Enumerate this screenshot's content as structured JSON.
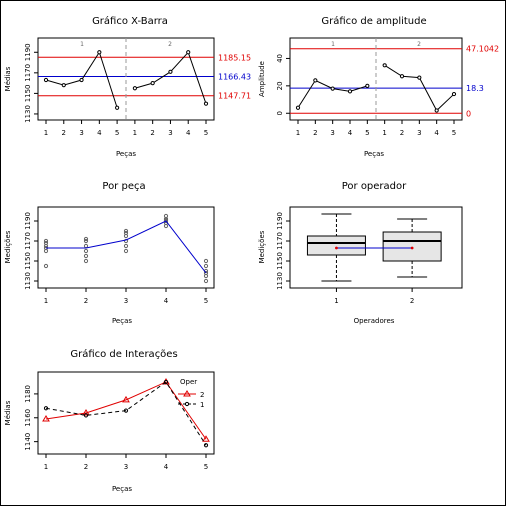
{
  "chart_data": [
    {
      "type": "line",
      "title": "Gráfico X-Barra",
      "xlabel": "Peças",
      "ylabel": "Médias",
      "categories": [
        "1",
        "2",
        "3",
        "4",
        "5",
        "1",
        "2",
        "3",
        "4",
        "5"
      ],
      "operator_labels": [
        "1",
        "2"
      ],
      "series": [
        {
          "values": [
            1163,
            1158,
            1163,
            1190,
            1136,
            1155,
            1160,
            1171,
            1190,
            1140
          ]
        }
      ],
      "center_line": 1166.43,
      "ucl": 1185.15,
      "lcl": 1147.71,
      "limit_labels": [
        "1185.15",
        "1166.43",
        "1147.71"
      ],
      "ylim": [
        1128,
        1200
      ],
      "yticks": [
        1130,
        1150,
        1170,
        1190
      ],
      "colors": {
        "limits": "#e00000",
        "center": "#0000cc",
        "divider": "#999999"
      }
    },
    {
      "type": "line",
      "title": "Gráfico de amplitude",
      "xlabel": "Peças",
      "ylabel": "Amplitude",
      "categories": [
        "1",
        "2",
        "3",
        "4",
        "5",
        "1",
        "2",
        "3",
        "4",
        "5"
      ],
      "operator_labels": [
        "1",
        "2"
      ],
      "series": [
        {
          "values": [
            4,
            24,
            18,
            16,
            20,
            35,
            27,
            26,
            2,
            14
          ]
        }
      ],
      "center_line": 18.3,
      "ucl": 47.1042,
      "lcl": 0,
      "limit_labels": [
        "47.1042",
        "18.3",
        "0"
      ],
      "ylim": [
        -2,
        52
      ],
      "yticks": [
        0,
        20,
        40
      ],
      "colors": {
        "limits": "#e00000",
        "center": "#0000cc",
        "divider": "#999999"
      }
    },
    {
      "type": "scatter",
      "title": "Por peça",
      "xlabel": "Peças",
      "ylabel": "Medições",
      "categories": [
        "1",
        "2",
        "3",
        "4",
        "5"
      ],
      "points": [
        [
          1,
          1170
        ],
        [
          1,
          1165
        ],
        [
          1,
          1163
        ],
        [
          1,
          1160
        ],
        [
          1,
          1145
        ],
        [
          1,
          1168
        ],
        [
          2,
          1170
        ],
        [
          2,
          1165
        ],
        [
          2,
          1160
        ],
        [
          2,
          1155
        ],
        [
          2,
          1150
        ],
        [
          2,
          1172
        ],
        [
          3,
          1178
        ],
        [
          3,
          1175
        ],
        [
          3,
          1170
        ],
        [
          3,
          1165
        ],
        [
          3,
          1160
        ],
        [
          3,
          1180
        ],
        [
          4,
          1195
        ],
        [
          4,
          1190
        ],
        [
          4,
          1185
        ],
        [
          4,
          1188
        ],
        [
          4,
          1192
        ],
        [
          4,
          1191
        ],
        [
          5,
          1150
        ],
        [
          5,
          1140
        ],
        [
          5,
          1135
        ],
        [
          5,
          1130
        ],
        [
          5,
          1145
        ],
        [
          5,
          1138
        ]
      ],
      "means": [
        1163,
        1163,
        1171,
        1190,
        1138
      ],
      "ylim": [
        1127,
        1200
      ],
      "yticks": [
        1130,
        1150,
        1170,
        1190
      ],
      "colors": {
        "line": "#0000cc",
        "points": "#666666"
      }
    },
    {
      "type": "box",
      "title": "Por operador",
      "xlabel": "Operadores",
      "ylabel": "Medições",
      "categories": [
        "1",
        "2"
      ],
      "boxes": [
        {
          "min": 1130,
          "q1": 1156,
          "median": 1168,
          "q3": 1175,
          "max": 1197
        },
        {
          "min": 1134,
          "q1": 1150,
          "median": 1170,
          "q3": 1179,
          "max": 1192
        }
      ],
      "means": [
        1163,
        1163
      ],
      "ylim": [
        1127,
        1200
      ],
      "yticks": [
        1130,
        1150,
        1170,
        1190
      ],
      "colors": {
        "box": "#e6e6e6",
        "mean_line": "#0000cc",
        "mean_point": "#e00000"
      }
    },
    {
      "type": "line",
      "title": "Gráfico de Interações",
      "xlabel": "Peças",
      "ylabel": "Médias",
      "categories": [
        "1",
        "2",
        "3",
        "4",
        "5"
      ],
      "legend_title": "Oper",
      "series": [
        {
          "name": "2",
          "values": [
            1159,
            1164,
            1175,
            1190,
            1142
          ],
          "color": "#e00000",
          "dash": "solid",
          "marker": "triangle"
        },
        {
          "name": "1",
          "values": [
            1168,
            1162,
            1166,
            1190,
            1137
          ],
          "color": "#000000",
          "dash": "dashed",
          "marker": "circle"
        }
      ],
      "ylim": [
        1133,
        1195
      ],
      "yticks": [
        1140,
        1160,
        1180
      ]
    }
  ]
}
